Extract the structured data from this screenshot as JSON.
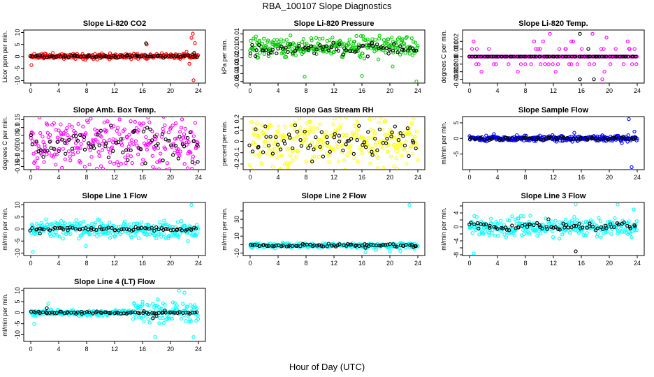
{
  "figure": {
    "title": "RBA_100107  Slope Diagnostics",
    "xlabel": "Hour of Day (UTC)"
  },
  "colors": {
    "red": "#ff0000",
    "green": "#00cc00",
    "magenta": "#ff00ff",
    "yellow": "#ffff00",
    "blue": "#0000ff",
    "cyan": "#00ffff",
    "black": "#000000"
  },
  "chart_data": [
    {
      "type": "scatter",
      "title": "Slope Li-820 CO2",
      "ylabel": "Licor ppm per min.",
      "xlabel": "",
      "xlim": [
        -1,
        25
      ],
      "xticks": [
        0,
        4,
        8,
        12,
        16,
        20,
        24
      ],
      "ylim": [
        -11,
        11
      ],
      "yticks": [
        -10,
        -5,
        0,
        5,
        10
      ],
      "color": "red",
      "grid": false,
      "series": [
        {
          "name": "scatter",
          "color": "red",
          "base": 0.2,
          "spread": 0.8,
          "seed": 11,
          "extra": [
            [
              0.1,
              -3.5
            ],
            [
              16.6,
              5.0
            ],
            [
              22.7,
              -3.0
            ],
            [
              23.0,
              7.8
            ],
            [
              23.2,
              9.5
            ],
            [
              23.3,
              -9.8
            ],
            [
              23.5,
              5.6
            ],
            [
              22.3,
              2.0
            ]
          ]
        },
        {
          "name": "overlay",
          "color": "black",
          "base": 0.1,
          "spread": 0.4,
          "seed": 12,
          "extra": [
            [
              16.5,
              5.5
            ],
            [
              23.4,
              1.5
            ]
          ]
        }
      ]
    },
    {
      "type": "scatter",
      "title": "Slope Li-820 Pressure",
      "ylabel": "kPa per min.",
      "xlabel": "",
      "xlim": [
        -1,
        25
      ],
      "xticks": [
        0,
        4,
        8,
        12,
        16,
        20,
        24
      ],
      "ylim": [
        -0.052,
        0.015
      ],
      "yticks": [
        -0.05,
        -0.04,
        -0.03,
        -0.02,
        -0.01,
        0.0,
        0.01
      ],
      "color": "green",
      "grid": false,
      "series": [
        {
          "name": "scatter",
          "color": "green",
          "base": -0.006,
          "spread": 0.009,
          "seed": 21,
          "extra": [
            [
              7.8,
              -0.044
            ],
            [
              16.0,
              -0.043
            ],
            [
              20.4,
              -0.031
            ],
            [
              23.8,
              -0.05
            ],
            [
              1.0,
              -0.02
            ],
            [
              0.0,
              -0.018
            ]
          ]
        },
        {
          "name": "overlay",
          "color": "black",
          "base": -0.008,
          "spread": 0.006,
          "seed": 22,
          "extra": []
        }
      ]
    },
    {
      "type": "scatter",
      "title": "Slope Li-820 Temp.",
      "ylabel": "degrees C per min.",
      "xlabel": "",
      "xlim": [
        -1,
        25
      ],
      "xticks": [
        0,
        4,
        8,
        12,
        16,
        20,
        24
      ],
      "ylim": [
        -0.0035,
        0.0035
      ],
      "yticks": [
        -0.003,
        -0.002,
        -0.001,
        0.0,
        0.001,
        0.002
      ],
      "color": "magenta",
      "grid": false,
      "quantize": 0.001,
      "series": [
        {
          "name": "scatter",
          "color": "magenta",
          "base": 0.0,
          "spread": 0.0016,
          "seed": 31,
          "sparse": 0.75,
          "extra": [
            [
              11.5,
              0.003
            ],
            [
              17.6,
              0.003
            ],
            [
              19.6,
              0.0025
            ],
            [
              19.0,
              -0.003
            ],
            [
              15.8,
              -0.003
            ]
          ]
        },
        {
          "name": "overlay",
          "color": "black",
          "base": 0.0,
          "spread": 0.0004,
          "seed": 32,
          "sparse": 0.85,
          "extra": [
            [
              15.8,
              0.003
            ],
            [
              15.8,
              -0.003
            ],
            [
              17.8,
              -0.003
            ],
            [
              17.0,
              0.001
            ]
          ]
        }
      ]
    },
    {
      "type": "scatter",
      "title": "Slope Amb. Box Temp.",
      "ylabel": "degrees C per min.",
      "xlabel": "",
      "xlim": [
        -1,
        25
      ],
      "xticks": [
        0,
        4,
        8,
        12,
        16,
        20,
        24
      ],
      "ylim": [
        -0.17,
        0.17
      ],
      "yticks": [
        -0.15,
        -0.1,
        -0.05,
        0.0,
        0.05,
        0.1,
        0.15
      ],
      "color": "magenta",
      "grid": false,
      "series": [
        {
          "name": "scatter",
          "color": "magenta",
          "base": 0.0,
          "spread": 0.14,
          "seed": 41,
          "extra": []
        },
        {
          "name": "overlay",
          "color": "black",
          "base": 0.0,
          "spread": 0.08,
          "seed": 42,
          "extra": [
            [
              23.9,
              -0.12
            ]
          ]
        }
      ]
    },
    {
      "type": "scatter",
      "title": "Slope Gas Stream RH",
      "ylabel": "percent per min.",
      "xlabel": "",
      "xlim": [
        -1,
        25
      ],
      "xticks": [
        0,
        4,
        8,
        12,
        16,
        20,
        24
      ],
      "ylim": [
        -0.25,
        0.22
      ],
      "yticks": [
        -0.2,
        -0.1,
        0.0,
        0.1,
        0.2
      ],
      "color": "yellow",
      "grid": false,
      "series": [
        {
          "name": "scatter",
          "color": "yellow",
          "base": 0.0,
          "spread": 0.17,
          "seed": 51,
          "extra": [
            [
              21.0,
              -0.24
            ]
          ]
        },
        {
          "name": "overlay",
          "color": "black",
          "base": 0.0,
          "spread": 0.11,
          "seed": 52,
          "extra": []
        }
      ]
    },
    {
      "type": "scatter",
      "title": "Slope Sample Flow",
      "ylabel": "ml/min per min.",
      "xlabel": "",
      "xlim": [
        -1,
        25
      ],
      "xticks": [
        0,
        4,
        8,
        12,
        16,
        20,
        24
      ],
      "ylim": [
        -10,
        7
      ],
      "yticks": [
        -5,
        0,
        5
      ],
      "color": "blue",
      "grid": false,
      "series": [
        {
          "name": "scatter",
          "color": "blue",
          "base": 0.0,
          "spread": 0.7,
          "seed": 61,
          "extra": [
            [
              15.0,
              1.8
            ],
            [
              22.8,
              6.2
            ],
            [
              23.2,
              -9.2
            ],
            [
              21.8,
              -1.5
            ],
            [
              23.6,
              2.2
            ],
            [
              3.5,
              1.4
            ],
            [
              19.0,
              1.0
            ]
          ]
        },
        {
          "name": "overlay",
          "color": "black",
          "base": 0.0,
          "spread": 0.35,
          "seed": 62,
          "extra": []
        }
      ]
    },
    {
      "type": "scatter",
      "title": "Slope Line 1 Flow",
      "ylabel": "ml/min per min.",
      "xlabel": "",
      "xlim": [
        -1,
        25
      ],
      "xticks": [
        0,
        4,
        8,
        12,
        16,
        20,
        24
      ],
      "ylim": [
        -11,
        11
      ],
      "yticks": [
        -10,
        -5,
        0,
        5,
        10
      ],
      "color": "cyan",
      "grid": false,
      "series": [
        {
          "name": "scatter",
          "color": "cyan",
          "base": 0.0,
          "spread": 2.6,
          "seed": 71,
          "extra": [
            [
              23.0,
              10.0
            ],
            [
              0.3,
              -9.5
            ],
            [
              22.5,
              -5.0
            ],
            [
              7.9,
              -7.0
            ]
          ]
        },
        {
          "name": "overlay",
          "color": "black",
          "base": 0.0,
          "spread": 0.5,
          "seed": 72,
          "extra": [
            [
              1.3,
              -1.8
            ]
          ]
        }
      ]
    },
    {
      "type": "scatter",
      "title": "Slope Line 2 Flow",
      "ylabel": "ml/min per min.",
      "xlabel": "",
      "xlim": [
        -1,
        25
      ],
      "xticks": [
        0,
        4,
        8,
        12,
        16,
        20,
        24
      ],
      "ylim": [
        -13,
        50
      ],
      "yticks": [
        -10,
        0,
        10,
        20,
        30,
        40
      ],
      "ytick_labels": [
        "-10",
        "",
        "10",
        "",
        "30",
        ""
      ],
      "color": "cyan",
      "grid": false,
      "series": [
        {
          "name": "scatter",
          "color": "cyan",
          "base": -1.0,
          "spread": 2.0,
          "seed": 81,
          "extra": [
            [
              22.8,
              47.0
            ],
            [
              16.5,
              -9.0
            ],
            [
              20.0,
              -8.0
            ],
            [
              18.0,
              -6.5
            ],
            [
              21.5,
              -7.5
            ],
            [
              23.5,
              -5.0
            ]
          ]
        },
        {
          "name": "overlay",
          "color": "black",
          "base": -1.0,
          "spread": 1.3,
          "seed": 82,
          "extra": [
            [
              16.5,
              -4.0
            ],
            [
              23.4,
              -3.0
            ]
          ]
        }
      ]
    },
    {
      "type": "scatter",
      "title": "Slope Line 3 Flow",
      "ylabel": "ml/min per min.",
      "xlabel": "",
      "xlim": [
        -1,
        25
      ],
      "xticks": [
        0,
        4,
        8,
        12,
        16,
        20,
        24
      ],
      "ylim": [
        -8.2,
        7
      ],
      "yticks": [
        -8,
        -6,
        -4,
        -2,
        0,
        2,
        4,
        6
      ],
      "ytick_labels": [
        "-8",
        "",
        "-4",
        "",
        "0",
        "",
        "4",
        ""
      ],
      "color": "cyan",
      "grid": false,
      "series": [
        {
          "name": "scatter",
          "color": "cyan",
          "base": 0.0,
          "spread": 2.0,
          "seed": 91,
          "extra": [
            [
              15.2,
              6.5
            ],
            [
              21.2,
              6.4
            ],
            [
              0.6,
              -7.6
            ],
            [
              23.5,
              5.0
            ],
            [
              18.8,
              -3.0
            ]
          ]
        },
        {
          "name": "overlay",
          "color": "black",
          "base": 0.0,
          "spread": 0.9,
          "seed": 92,
          "extra": [
            [
              15.2,
              -7.0
            ],
            [
              11.3,
              2.2
            ]
          ]
        }
      ]
    },
    {
      "type": "scatter",
      "title": "Slope Line 4 (LT) Flow",
      "ylabel": "ml/min per min.",
      "xlabel": "",
      "xlim": [
        -1,
        25
      ],
      "xticks": [
        0,
        4,
        8,
        12,
        16,
        20,
        24
      ],
      "ylim": [
        -13,
        11
      ],
      "yticks": [
        -10,
        -5,
        0,
        5,
        10
      ],
      "color": "cyan",
      "grid": false,
      "series": [
        {
          "name": "scatter",
          "color": "cyan",
          "base": 0.0,
          "spread": 0.9,
          "seed": 101,
          "lateNoise": [
            14.5,
            24,
            4.0
          ],
          "extra": [
            [
              21.2,
              10.0
            ],
            [
              22.0,
              9.0
            ],
            [
              17.8,
              -11.0
            ],
            [
              23.3,
              -11.0
            ],
            [
              14.8,
              4.0
            ],
            [
              16.0,
              5.0
            ],
            [
              0.5,
              -5.0
            ],
            [
              2.5,
              4.0
            ]
          ]
        },
        {
          "name": "overlay",
          "color": "black",
          "base": 0.0,
          "spread": 0.4,
          "seed": 102,
          "extra": [
            [
              2.3,
              2.0
            ],
            [
              17.5,
              -2.5
            ],
            [
              18.0,
              -1.5
            ],
            [
              19.2,
              1.0
            ]
          ]
        }
      ]
    }
  ]
}
